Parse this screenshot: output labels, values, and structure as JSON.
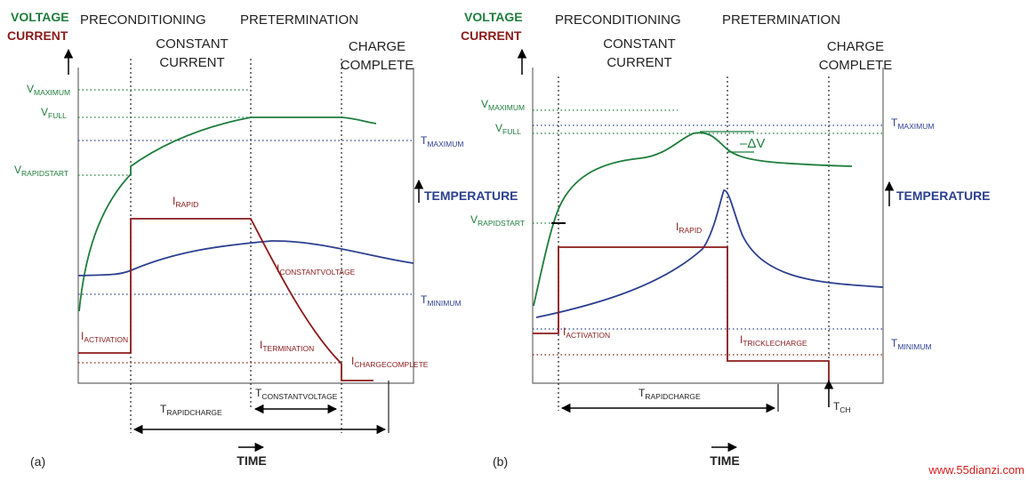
{
  "colors": {
    "voltage": "#1e7d3c",
    "current": "#8b1a1a",
    "temperature": "#2b3f8f",
    "axis": "#555555",
    "text": "#222222",
    "watermark": "#d42020"
  },
  "panel_a": {
    "voltage_label": "VOLTAGE",
    "current_label": "CURRENT",
    "phase_preconditioning": "PRECONDITIONING",
    "phase_constant_1": "CONSTANT",
    "phase_constant_2": "CURRENT",
    "phase_pretermination": "PRETERMINATION",
    "phase_charge_1": "CHARGE",
    "phase_charge_2": "COMPLETE",
    "v_maximum": {
      "main": "V",
      "sub": "MAXIMUM"
    },
    "v_full": {
      "main": "V",
      "sub": "FULL"
    },
    "v_rapidstart": {
      "main": "V",
      "sub": "RAPIDSTART"
    },
    "i_rapid": {
      "main": "I",
      "sub": "RAPID"
    },
    "i_constantvoltage": {
      "main": "I",
      "sub": "CONSTANTVOLTAGE"
    },
    "i_activation": {
      "main": "I",
      "sub": "ACTIVATION"
    },
    "i_termination": {
      "main": "I",
      "sub": "TERMINATION"
    },
    "i_chargecomplete": {
      "main": "I",
      "sub": "CHARGECOMPLETE"
    },
    "t_maximum": {
      "main": "T",
      "sub": "MAXIMUM"
    },
    "t_minimum": {
      "main": "T",
      "sub": "MINIMUM"
    },
    "temperature_label": "TEMPERATURE",
    "t_rapidcharge": {
      "main": "T",
      "sub": "RAPIDCHARGE"
    },
    "t_constantvoltage": {
      "main": "T",
      "sub": "CONSTANTVOLTAGE"
    },
    "time_label": "TIME",
    "panel_label": "(a)"
  },
  "panel_b": {
    "voltage_label": "VOLTAGE",
    "current_label": "CURRENT",
    "phase_preconditioning": "PRECONDITIONING",
    "phase_constant_1": "CONSTANT",
    "phase_constant_2": "CURRENT",
    "phase_pretermination": "PRETERMINATION",
    "phase_charge_1": "CHARGE",
    "phase_charge_2": "COMPLETE",
    "v_maximum": {
      "main": "V",
      "sub": "MAXIMUM"
    },
    "v_full": {
      "main": "V",
      "sub": "FULL"
    },
    "v_rapidstart": {
      "main": "V",
      "sub": "RAPIDSTART"
    },
    "delta_v": "–ΔV",
    "i_rapid": {
      "main": "I",
      "sub": "RAPID"
    },
    "i_activation": {
      "main": "I",
      "sub": "ACTIVATION"
    },
    "i_tricklecharge": {
      "main": "I",
      "sub": "TRICKLECHARGE"
    },
    "t_maximum": {
      "main": "T",
      "sub": "MAXIMUM"
    },
    "t_minimum": {
      "main": "T",
      "sub": "MINIMUM"
    },
    "temperature_label": "TEMPERATURE",
    "t_rapidcharge": {
      "main": "T",
      "sub": "RAPIDCHARGE"
    },
    "t_ch": {
      "main": "T",
      "sub": "CH"
    },
    "time_label": "TIME",
    "panel_label": "(b)"
  },
  "watermark": "www.55dianzi.com"
}
